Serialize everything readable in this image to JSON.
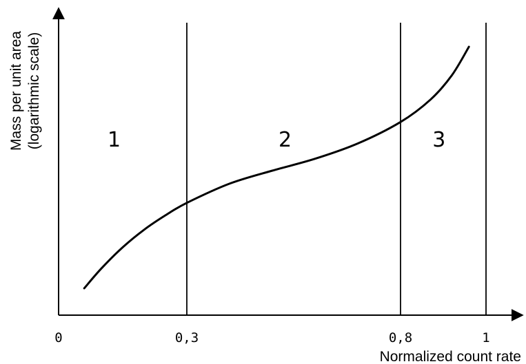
{
  "chart_data": {
    "type": "line",
    "xlabel": "Normalized count rate",
    "ylabel_lines": [
      "Mass per unit area",
      "(logarithmic scale)"
    ],
    "x_ticks": [
      {
        "value": 0,
        "label": "0"
      },
      {
        "value": 0.3,
        "label": "0,3"
      },
      {
        "value": 0.8,
        "label": "0,8"
      },
      {
        "value": 1,
        "label": "1"
      }
    ],
    "xlim": [
      0,
      1.06
    ],
    "ylim": [
      0,
      1
    ],
    "y_tick_labels": [],
    "boundaries": [
      0.3,
      0.8,
      1
    ],
    "regions": [
      {
        "label": "1",
        "x": 0.13,
        "y": 0.62
      },
      {
        "label": "2",
        "x": 0.53,
        "y": 0.62
      },
      {
        "label": "3",
        "x": 0.89,
        "y": 0.62
      }
    ],
    "series": [
      {
        "points": [
          [
            0.06,
            0.095
          ],
          [
            0.1,
            0.165
          ],
          [
            0.15,
            0.24
          ],
          [
            0.2,
            0.302
          ],
          [
            0.25,
            0.353
          ],
          [
            0.3,
            0.397
          ],
          [
            0.4,
            0.465
          ],
          [
            0.5,
            0.511
          ],
          [
            0.6,
            0.553
          ],
          [
            0.7,
            0.607
          ],
          [
            0.8,
            0.683
          ],
          [
            0.87,
            0.762
          ],
          [
            0.92,
            0.848
          ],
          [
            0.96,
            0.949
          ]
        ]
      }
    ],
    "grid": false,
    "legend": "none"
  }
}
